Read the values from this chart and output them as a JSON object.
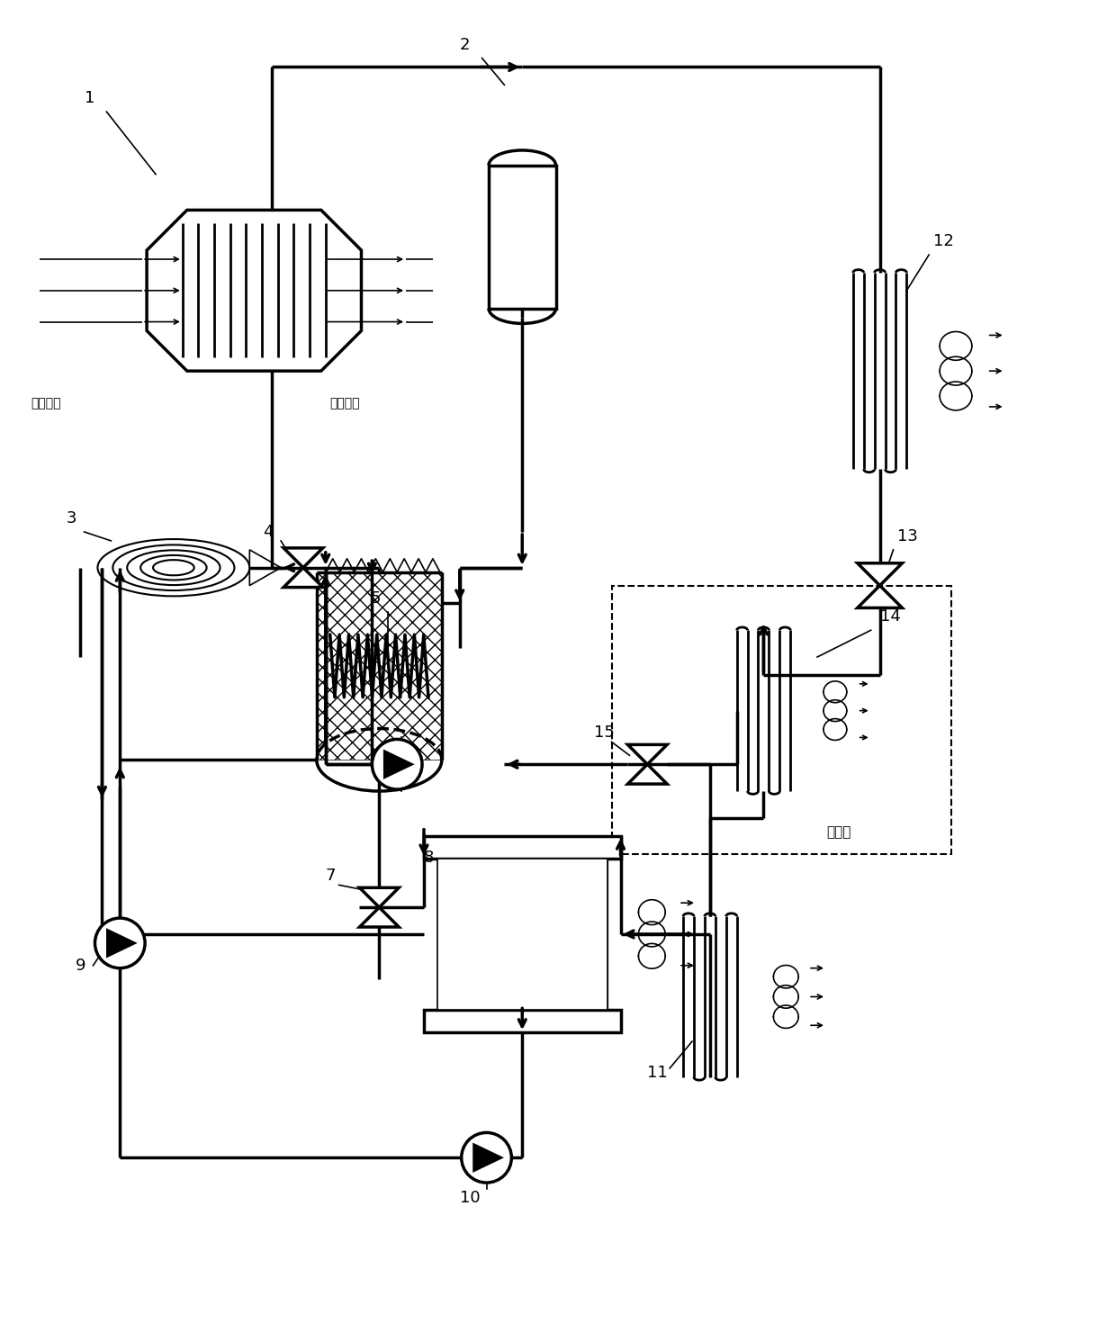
{
  "bg_color": "#ffffff",
  "lc": "#000000",
  "lw": 2.5,
  "thin": 1.2,
  "chinese_inlet": "尾气入口",
  "chinese_outlet": "尾气出口",
  "chinese_indoor": "室内侧",
  "figsize": [
    12.4,
    14.7
  ],
  "dpi": 100
}
